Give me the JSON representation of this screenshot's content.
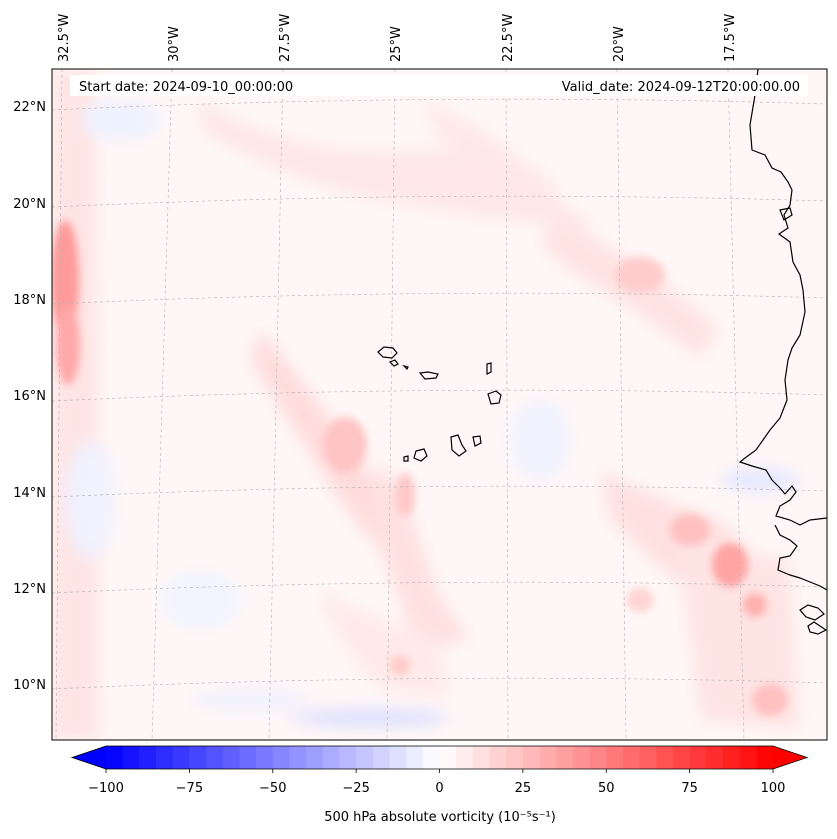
{
  "map": {
    "start_date": "Start date: 2024-09-10_00:00:00",
    "valid_date": "Valid_date: 2024-09-12T20:00:00.00",
    "longitude_labels": [
      "32.5°W",
      "30°W",
      "27.5°W",
      "25°W",
      "22.5°W",
      "20°W",
      "17.5°W"
    ],
    "latitude_labels": [
      "22°N",
      "20°N",
      "18°N",
      "16°N",
      "14°N",
      "12°N",
      "10°N"
    ],
    "features": [
      "cape-verde-islands",
      "west-africa-coastline"
    ]
  },
  "colorbar": {
    "label": "500 hPa absolute vorticity (10⁻⁵s⁻¹)",
    "min": -100,
    "max": 100,
    "ticks": [
      "−100",
      "−75",
      "−50",
      "−25",
      "0",
      "25",
      "50",
      "75",
      "100"
    ],
    "tick_values": [
      -100,
      -75,
      -50,
      -25,
      0,
      25,
      50,
      75,
      100
    ],
    "levels": 40,
    "colormap": "bwr",
    "low_color": "#0000ff",
    "mid_color": "#ffffff",
    "high_color": "#ff0000"
  },
  "colors": {
    "gridline": "#b0b0b0",
    "coastline": "#000000"
  }
}
